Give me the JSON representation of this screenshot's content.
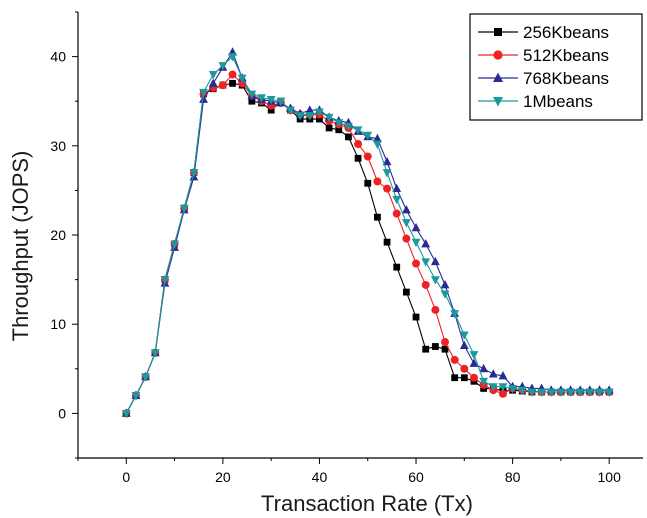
{
  "chart_data": {
    "type": "line",
    "title": "",
    "xlabel": "Transaction Rate (Tx)",
    "ylabel": "Throughput (JOPS)",
    "xlim": [
      -10,
      107
    ],
    "ylim": [
      -5,
      45
    ],
    "x_ticks": [
      0,
      20,
      40,
      60,
      80,
      100
    ],
    "y_ticks": [
      0,
      10,
      20,
      30,
      40
    ],
    "grid": false,
    "legend_position": "top-right",
    "x": [
      0,
      2,
      4,
      6,
      8,
      10,
      12,
      14,
      16,
      18,
      20,
      22,
      24,
      26,
      28,
      30,
      32,
      34,
      36,
      38,
      40,
      42,
      44,
      46,
      48,
      50,
      52,
      54,
      56,
      58,
      60,
      62,
      64,
      66,
      68,
      70,
      72,
      74,
      76,
      78,
      80,
      82,
      84,
      86,
      88,
      90,
      92,
      94,
      96,
      98,
      100
    ],
    "series": [
      {
        "name": "256Kbeans",
        "color": "#000000",
        "marker": "square",
        "values": [
          0,
          2,
          4.1,
          6.8,
          15,
          19,
          23,
          27,
          35.8,
          36.4,
          36.8,
          37,
          36.8,
          35,
          34.8,
          34,
          35,
          34,
          33,
          33,
          33,
          32,
          31.8,
          31,
          28.6,
          25.8,
          22,
          19.2,
          16.4,
          13.6,
          10.8,
          7.2,
          7.5,
          7.2,
          4,
          4,
          3.6,
          2.8,
          2.8,
          2.5,
          2.6,
          2.5,
          2.4,
          2.4,
          2.4,
          2.4,
          2.4,
          2.4,
          2.4,
          2.4,
          2.4
        ]
      },
      {
        "name": "512Kbeans",
        "color": "#ee2222",
        "marker": "circle",
        "values": [
          0,
          2,
          4.1,
          6.8,
          15,
          19,
          23,
          27,
          35.8,
          36.5,
          36.8,
          38,
          37,
          35.6,
          35,
          34.5,
          34.8,
          34,
          33.5,
          33.5,
          33.5,
          32.8,
          32.4,
          32,
          30.2,
          28.8,
          26,
          25.2,
          22.4,
          19.6,
          16.8,
          14.4,
          11.6,
          8,
          6,
          5,
          4,
          3.2,
          2.6,
          2.2,
          2.8,
          2.6,
          2.5,
          2.4,
          2.4,
          2.4,
          2.4,
          2.4,
          2.4,
          2.4,
          2.4
        ]
      },
      {
        "name": "768Kbeans",
        "color": "#2a2a96",
        "marker": "triangle-up",
        "values": [
          0,
          2,
          4.1,
          6.8,
          14.6,
          18.6,
          22.8,
          26.5,
          35.2,
          37,
          38.8,
          40.5,
          37.6,
          35.6,
          35.2,
          35,
          34.8,
          34.2,
          33.6,
          34,
          34,
          33.2,
          32.8,
          32.6,
          31.6,
          31,
          30.8,
          28.2,
          25.2,
          22.8,
          20.8,
          19,
          17,
          14.4,
          11.2,
          7.6,
          5.6,
          5,
          4.4,
          4.2,
          3,
          3,
          2.8,
          2.8,
          2.6,
          2.6,
          2.6,
          2.6,
          2.6,
          2.6,
          2.6
        ]
      },
      {
        "name": "1Mbeans",
        "color": "#1a9a9a",
        "marker": "triangle-down",
        "values": [
          0,
          2,
          4.1,
          6.8,
          15,
          19,
          23,
          27,
          36,
          38,
          39,
          40,
          37.6,
          35.8,
          35.4,
          35.2,
          35,
          34,
          33.4,
          33.4,
          33.8,
          33.2,
          32.6,
          32.2,
          31.8,
          31.2,
          30.2,
          27,
          24,
          21.4,
          19.2,
          17,
          15,
          13.4,
          11.2,
          8.8,
          6.6,
          3.6,
          3,
          3,
          2.8,
          2.6,
          2.4,
          2.4,
          2.4,
          2.4,
          2.4,
          2.4,
          2.4,
          2.4,
          2.4
        ]
      }
    ]
  }
}
